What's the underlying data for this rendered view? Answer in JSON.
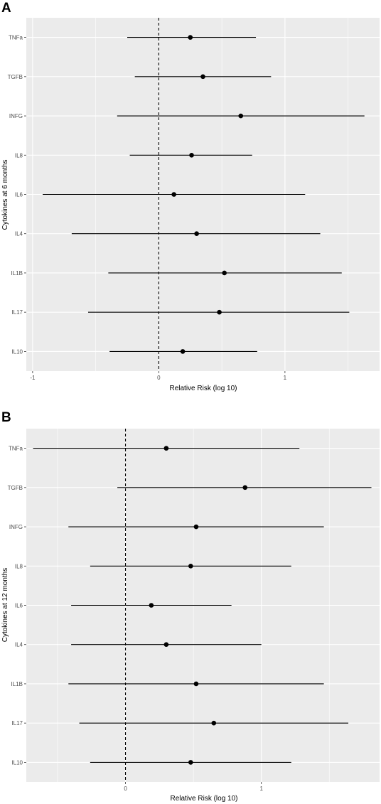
{
  "figure": {
    "background": "#ffffff",
    "panel_background": "#ebebeb",
    "grid_color": "#ffffff",
    "mark_color": "#000000"
  },
  "chart_data": [
    {
      "panel_label": "A",
      "type": "forest",
      "xlabel": "Relative Risk (log 10)",
      "ylabel": "Cytokines at 6 months",
      "xlim": [
        -1.05,
        1.75
      ],
      "xticks": [
        -1,
        0,
        1
      ],
      "xtick_labels": [
        "-1",
        "0",
        "1"
      ],
      "reference_line": 0,
      "grid": true,
      "categories": [
        "TNFa",
        "TGFB",
        "INFG",
        "IL8",
        "IL6",
        "IL4",
        "IL1B",
        "IL17",
        "IL10"
      ],
      "estimate": [
        0.25,
        0.35,
        0.65,
        0.26,
        0.12,
        0.3,
        0.52,
        0.48,
        0.19
      ],
      "lower": [
        -0.25,
        -0.19,
        -0.33,
        -0.23,
        -0.92,
        -0.69,
        -0.4,
        -0.56,
        -0.39
      ],
      "upper": [
        0.77,
        0.89,
        1.63,
        0.74,
        1.16,
        1.28,
        1.45,
        1.51,
        0.78
      ]
    },
    {
      "panel_label": "B",
      "type": "forest",
      "xlabel": "Relative Risk (log 10)",
      "ylabel": "Cytokines at 12 months",
      "xlim": [
        -0.73,
        1.87
      ],
      "xticks": [
        0,
        1
      ],
      "xtick_labels": [
        "0",
        "1"
      ],
      "reference_line": 0,
      "grid": true,
      "categories": [
        "TNFa",
        "TGFB",
        "INFG",
        "IL8",
        "IL6",
        "IL4",
        "IL1B",
        "IL17",
        "IL10"
      ],
      "estimate": [
        0.3,
        0.88,
        0.52,
        0.48,
        0.19,
        0.3,
        0.52,
        0.65,
        0.48
      ],
      "lower": [
        -0.68,
        -0.06,
        -0.42,
        -0.26,
        -0.4,
        -0.4,
        -0.42,
        -0.34,
        -0.26
      ],
      "upper": [
        1.28,
        1.81,
        1.46,
        1.22,
        0.78,
        1.0,
        1.46,
        1.64,
        1.22
      ]
    }
  ]
}
